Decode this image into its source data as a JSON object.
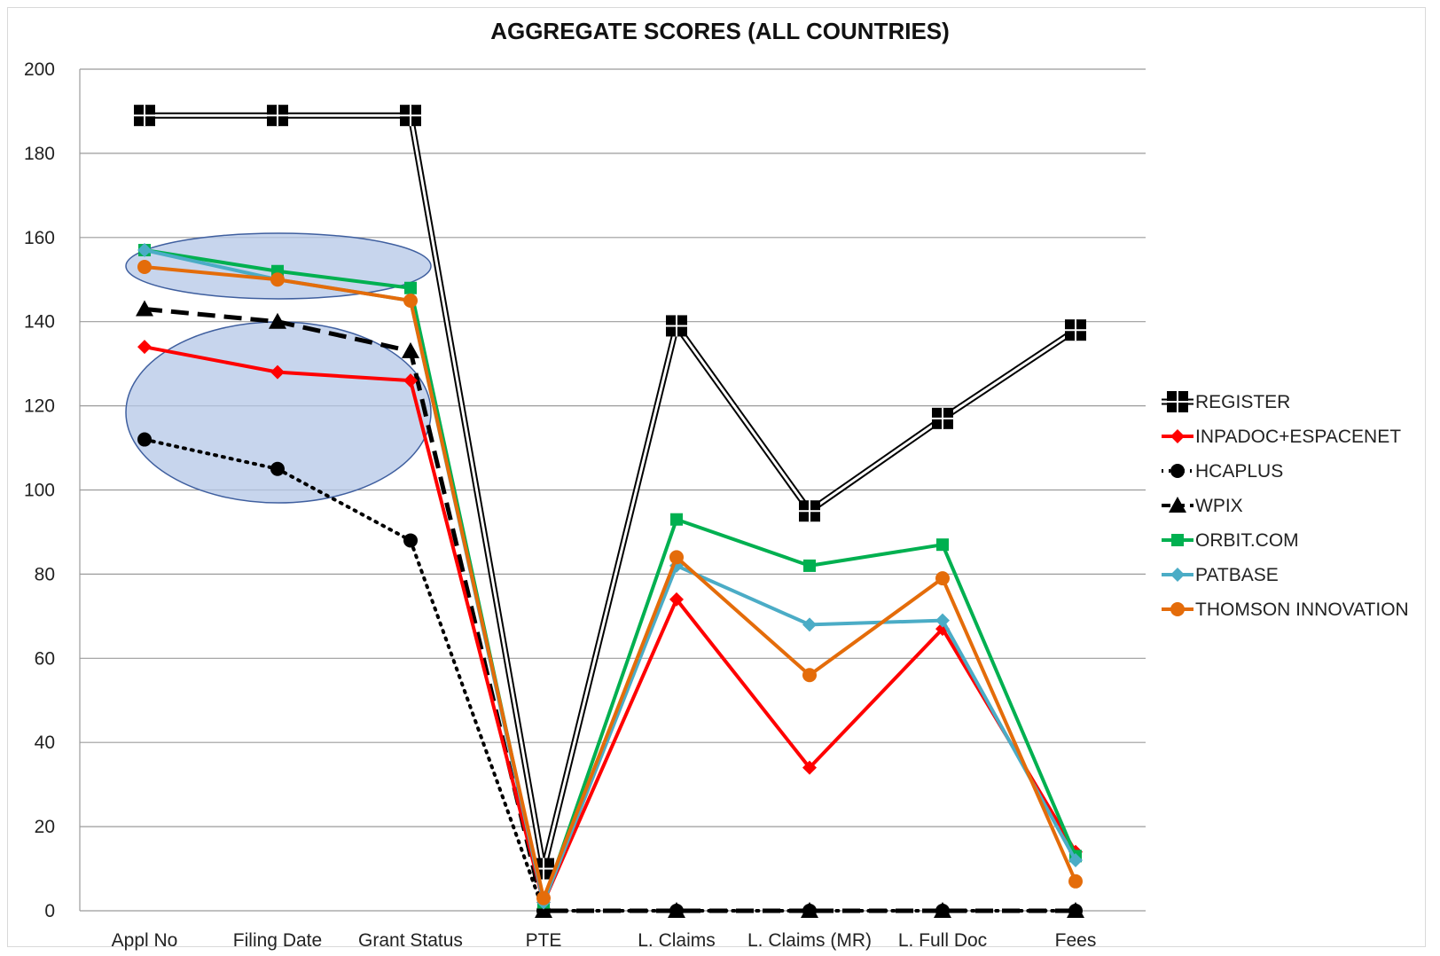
{
  "chart_data": {
    "type": "line",
    "title": "AGGREGATE SCORES (ALL COUNTRIES)",
    "xlabel": "",
    "ylabel": "",
    "ylim": [
      0,
      200
    ],
    "yticks": [
      0,
      20,
      40,
      60,
      80,
      100,
      120,
      140,
      160,
      180,
      200
    ],
    "grid": true,
    "legend_position": "right",
    "categories": [
      "Appl No",
      "Filing Date",
      "Grant Status",
      "PTE",
      "L. Claims",
      "L. Claims (MR)",
      "L. Full Doc",
      "Fees"
    ],
    "series": [
      {
        "name": "REGISTER",
        "color": "#000000",
        "marker": "square-large",
        "line": "double",
        "values": [
          189,
          189,
          189,
          10,
          139,
          95,
          117,
          138
        ]
      },
      {
        "name": "INPADOC+ESPACENET",
        "color": "#ff0000",
        "marker": "diamond",
        "line": "solid",
        "values": [
          134,
          128,
          126,
          2,
          74,
          34,
          67,
          14
        ]
      },
      {
        "name": "HCAPLUS",
        "color": "#000000",
        "marker": "circle",
        "line": "dotted",
        "values": [
          112,
          105,
          88,
          0,
          0,
          0,
          0,
          0
        ]
      },
      {
        "name": "WPIX",
        "color": "#000000",
        "marker": "triangle",
        "line": "dashed",
        "values": [
          143,
          140,
          133,
          0,
          0,
          0,
          0,
          0
        ]
      },
      {
        "name": "ORBIT.COM",
        "color": "#00b050",
        "marker": "square",
        "line": "solid",
        "values": [
          157,
          152,
          148,
          2,
          93,
          82,
          87,
          13
        ]
      },
      {
        "name": "PATBASE",
        "color": "#4bacc6",
        "marker": "diamond",
        "line": "solid",
        "values": [
          157,
          150,
          145,
          2,
          82,
          68,
          69,
          12
        ]
      },
      {
        "name": "THOMSON INNOVATION",
        "color": "#e46c0a",
        "marker": "circle",
        "line": "solid",
        "values": [
          153,
          150,
          145,
          3,
          84,
          56,
          79,
          7
        ]
      }
    ],
    "annotations": [
      {
        "shape": "ellipse",
        "color": "#b4c7e7",
        "note": "highlight"
      },
      {
        "shape": "ellipse",
        "color": "#b4c7e7",
        "note": "highlight"
      }
    ]
  }
}
